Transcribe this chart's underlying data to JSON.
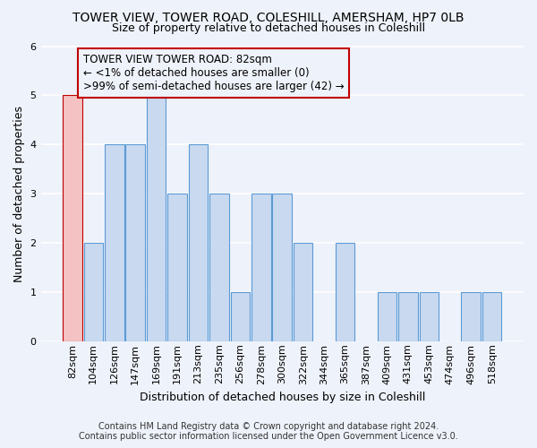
{
  "title1": "TOWER VIEW, TOWER ROAD, COLESHILL, AMERSHAM, HP7 0LB",
  "title2": "Size of property relative to detached houses in Coleshill",
  "xlabel": "Distribution of detached houses by size in Coleshill",
  "ylabel": "Number of detached properties",
  "categories": [
    "82sqm",
    "104sqm",
    "126sqm",
    "147sqm",
    "169sqm",
    "191sqm",
    "213sqm",
    "235sqm",
    "256sqm",
    "278sqm",
    "300sqm",
    "322sqm",
    "344sqm",
    "365sqm",
    "387sqm",
    "409sqm",
    "431sqm",
    "453sqm",
    "474sqm",
    "496sqm",
    "518sqm"
  ],
  "values": [
    5,
    2,
    4,
    4,
    5,
    3,
    4,
    3,
    1,
    3,
    3,
    2,
    0,
    2,
    0,
    1,
    1,
    1,
    0,
    1,
    1
  ],
  "bar_color": "#c8d9f0",
  "bar_edge_color": "#5b9bd5",
  "highlight_index": 0,
  "highlight_bar_color": "#f4c2c2",
  "highlight_bar_edge_color": "#c00000",
  "annotation_box_edge_color": "#c00000",
  "annotation_lines": [
    "TOWER VIEW TOWER ROAD: 82sqm",
    "← <1% of detached houses are smaller (0)",
    ">99% of semi-detached houses are larger (42) →"
  ],
  "ylim": [
    0,
    6
  ],
  "yticks": [
    0,
    1,
    2,
    3,
    4,
    5,
    6
  ],
  "footer_line1": "Contains HM Land Registry data © Crown copyright and database right 2024.",
  "footer_line2": "Contains public sector information licensed under the Open Government Licence v3.0.",
  "background_color": "#eef2fa",
  "grid_color": "#ffffff",
  "title1_fontsize": 10,
  "title2_fontsize": 9,
  "axis_label_fontsize": 9,
  "tick_fontsize": 8,
  "annotation_fontsize": 8.5,
  "footer_fontsize": 7
}
